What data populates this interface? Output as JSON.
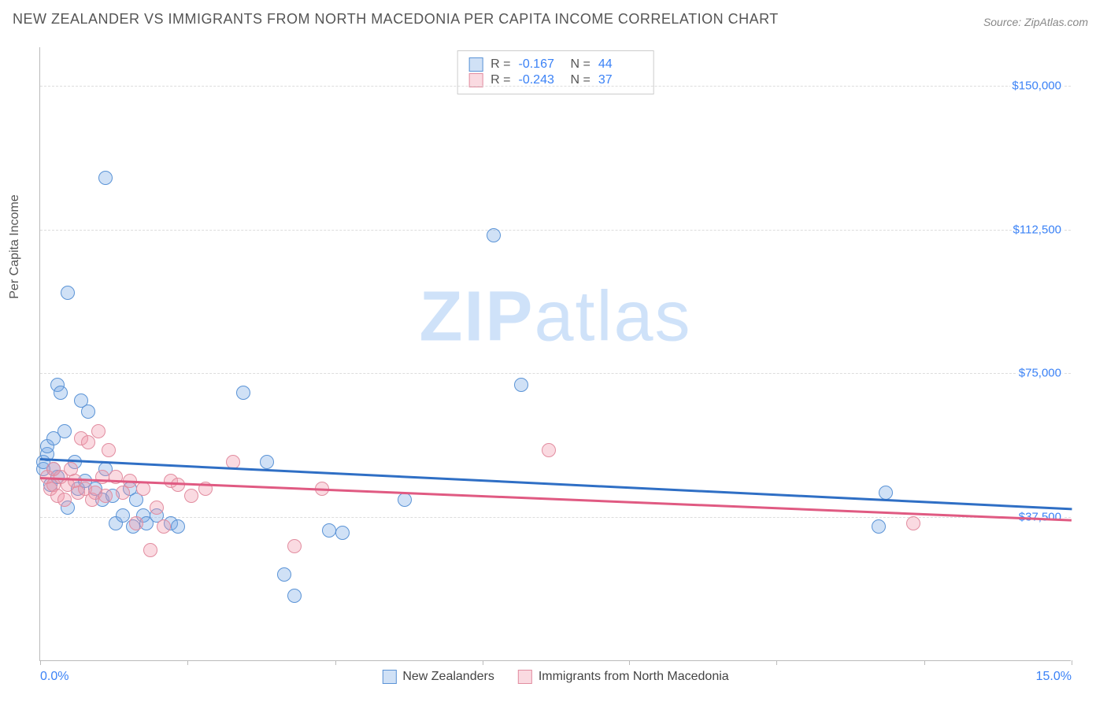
{
  "title": "NEW ZEALANDER VS IMMIGRANTS FROM NORTH MACEDONIA PER CAPITA INCOME CORRELATION CHART",
  "source": "Source: ZipAtlas.com",
  "ylabel": "Per Capita Income",
  "watermark": "ZIPatlas",
  "chart": {
    "type": "scatter",
    "xlim": [
      0,
      15
    ],
    "ylim": [
      0,
      160000
    ],
    "xtick_labels": {
      "0": "0.0%",
      "15": "15.0%"
    },
    "xtick_marks": [
      0,
      2.14,
      4.29,
      6.43,
      8.57,
      10.71,
      12.86,
      15
    ],
    "ytick_labels": {
      "37500": "$37,500",
      "75000": "$75,000",
      "112500": "$112,500",
      "150000": "$150,000"
    },
    "grid_color": "#dddddd",
    "axis_color": "#bbbbbb",
    "background_color": "#ffffff",
    "watermark_color": "#cfe2f9",
    "marker_radius": 9,
    "marker_stroke": 1.5,
    "trend_width": 3
  },
  "series": [
    {
      "key": "nz",
      "label": "New Zealanders",
      "fill": "rgba(120,170,230,0.35)",
      "stroke": "#5a93d6",
      "line_color": "#2f6fc5",
      "R": "-0.167",
      "N": "44",
      "trend": {
        "x1": 0,
        "y1": 53000,
        "x2": 15,
        "y2": 40000
      },
      "points": [
        [
          0.05,
          50000
        ],
        [
          0.05,
          52000
        ],
        [
          0.1,
          54000
        ],
        [
          0.1,
          56000
        ],
        [
          0.15,
          46000
        ],
        [
          0.2,
          50000
        ],
        [
          0.2,
          58000
        ],
        [
          0.25,
          48000
        ],
        [
          0.25,
          72000
        ],
        [
          0.3,
          70000
        ],
        [
          0.35,
          60000
        ],
        [
          0.4,
          40000
        ],
        [
          0.4,
          96000
        ],
        [
          0.5,
          52000
        ],
        [
          0.55,
          45000
        ],
        [
          0.6,
          68000
        ],
        [
          0.65,
          47000
        ],
        [
          0.7,
          65000
        ],
        [
          0.8,
          45000
        ],
        [
          0.9,
          42000
        ],
        [
          0.95,
          126000
        ],
        [
          0.95,
          50000
        ],
        [
          1.05,
          43000
        ],
        [
          1.1,
          36000
        ],
        [
          1.2,
          38000
        ],
        [
          1.3,
          45000
        ],
        [
          1.35,
          35000
        ],
        [
          1.4,
          42000
        ],
        [
          1.5,
          38000
        ],
        [
          1.55,
          36000
        ],
        [
          1.7,
          38000
        ],
        [
          1.9,
          36000
        ],
        [
          2.0,
          35000
        ],
        [
          2.95,
          70000
        ],
        [
          3.3,
          52000
        ],
        [
          3.55,
          22500
        ],
        [
          3.7,
          17000
        ],
        [
          4.2,
          34000
        ],
        [
          4.4,
          33500
        ],
        [
          5.3,
          42000
        ],
        [
          6.6,
          111000
        ],
        [
          7.0,
          72000
        ],
        [
          12.3,
          44000
        ],
        [
          12.2,
          35000
        ]
      ]
    },
    {
      "key": "nm",
      "label": "Immigrants from North Macedonia",
      "fill": "rgba(240,150,170,0.35)",
      "stroke": "#e28da0",
      "line_color": "#e05a82",
      "R": "-0.243",
      "N": "37",
      "trend": {
        "x1": 0,
        "y1": 48000,
        "x2": 15,
        "y2": 37000
      },
      "points": [
        [
          0.1,
          48000
        ],
        [
          0.15,
          45000
        ],
        [
          0.2,
          50000
        ],
        [
          0.2,
          46000
        ],
        [
          0.25,
          43000
        ],
        [
          0.3,
          48000
        ],
        [
          0.35,
          42000
        ],
        [
          0.4,
          46000
        ],
        [
          0.45,
          50000
        ],
        [
          0.5,
          47000
        ],
        [
          0.55,
          44000
        ],
        [
          0.6,
          58000
        ],
        [
          0.65,
          45000
        ],
        [
          0.7,
          57000
        ],
        [
          0.75,
          42000
        ],
        [
          0.8,
          44000
        ],
        [
          0.85,
          60000
        ],
        [
          0.9,
          48000
        ],
        [
          0.95,
          43000
        ],
        [
          1.0,
          55000
        ],
        [
          1.1,
          48000
        ],
        [
          1.2,
          44000
        ],
        [
          1.3,
          47000
        ],
        [
          1.4,
          36000
        ],
        [
          1.5,
          45000
        ],
        [
          1.6,
          29000
        ],
        [
          1.7,
          40000
        ],
        [
          1.8,
          35000
        ],
        [
          1.9,
          47000
        ],
        [
          2.0,
          46000
        ],
        [
          2.2,
          43000
        ],
        [
          2.4,
          45000
        ],
        [
          2.8,
          52000
        ],
        [
          3.7,
          30000
        ],
        [
          4.1,
          45000
        ],
        [
          7.4,
          55000
        ],
        [
          12.7,
          36000
        ]
      ]
    }
  ]
}
